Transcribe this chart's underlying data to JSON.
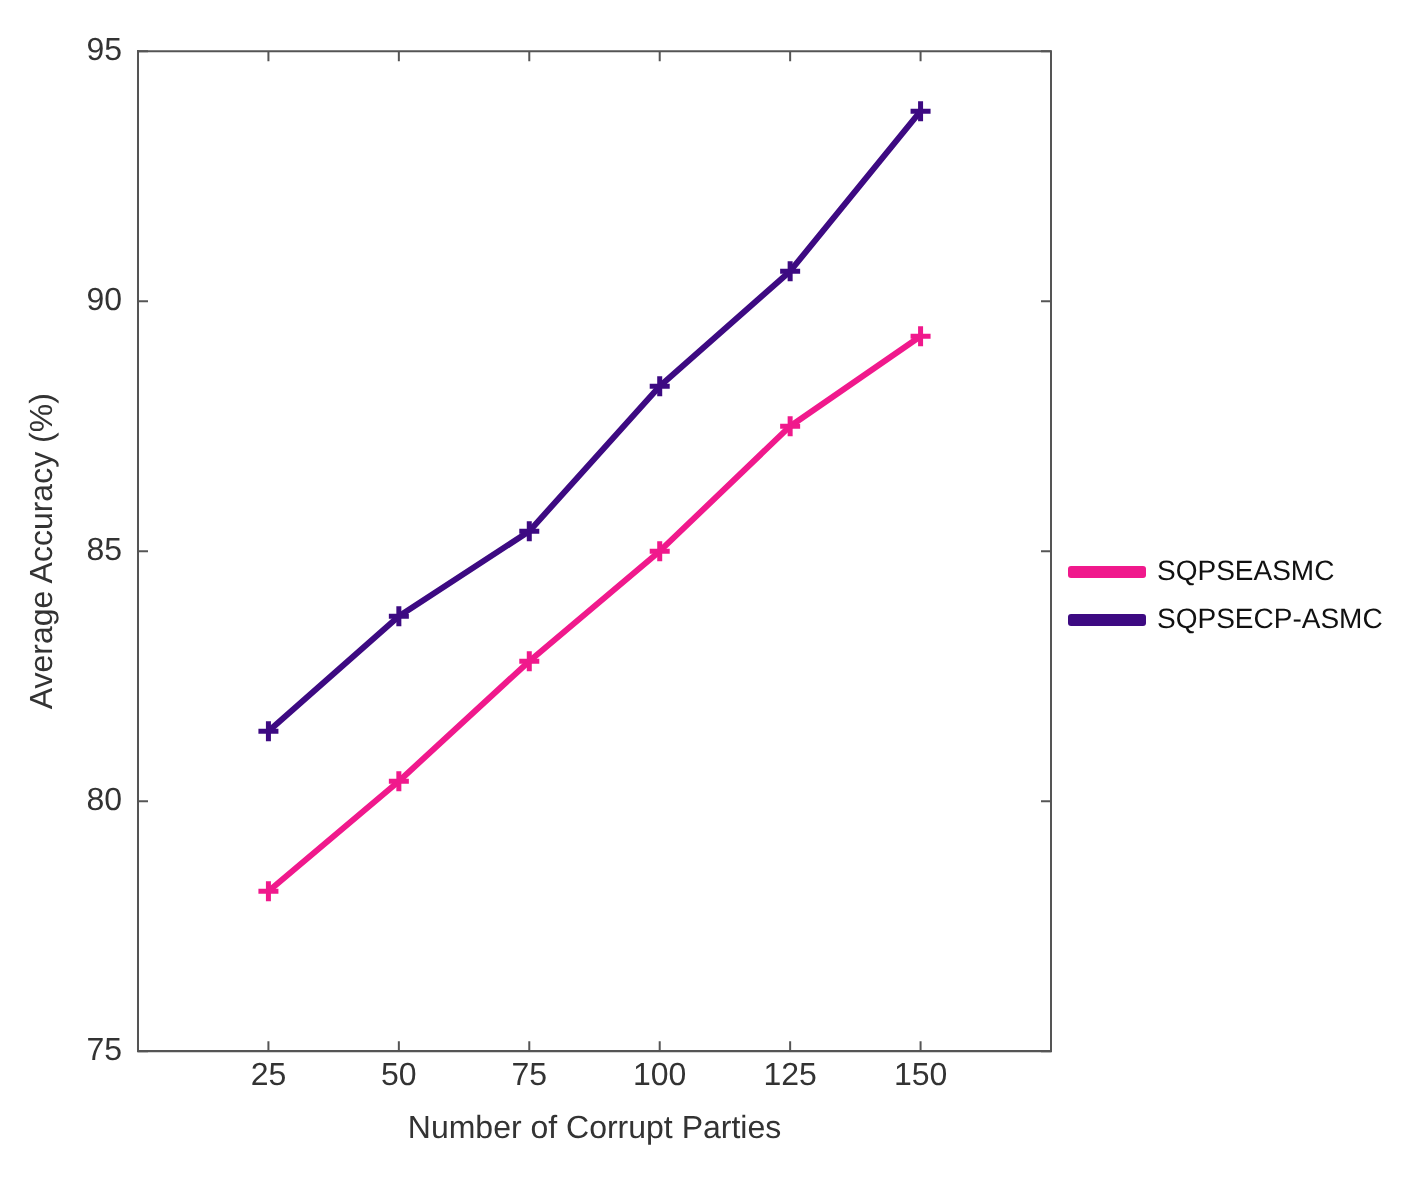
{
  "chart_data": {
    "type": "line",
    "xlabel": "Number of Corrupt Parties",
    "ylabel": "Average Accuracy (%)",
    "x": [
      25,
      50,
      75,
      100,
      125,
      150
    ],
    "series": [
      {
        "name": "SQPSEASMC",
        "color": "#f0198c",
        "marker": "cross",
        "values": [
          78.2,
          80.4,
          82.8,
          85.0,
          87.5,
          89.3
        ]
      },
      {
        "name": "SQPSECP-ASMC",
        "color": "#3d0a82",
        "marker": "cross",
        "values": [
          81.4,
          83.7,
          85.4,
          88.3,
          90.6,
          93.8
        ]
      }
    ],
    "xlim": [
      0,
      175
    ],
    "xticks": [
      25,
      50,
      75,
      100,
      125,
      150
    ],
    "ylim": [
      75,
      95
    ],
    "yticks": [
      75,
      80,
      85,
      90,
      95
    ],
    "grid": false,
    "legend": "right",
    "line_style": "solid"
  }
}
